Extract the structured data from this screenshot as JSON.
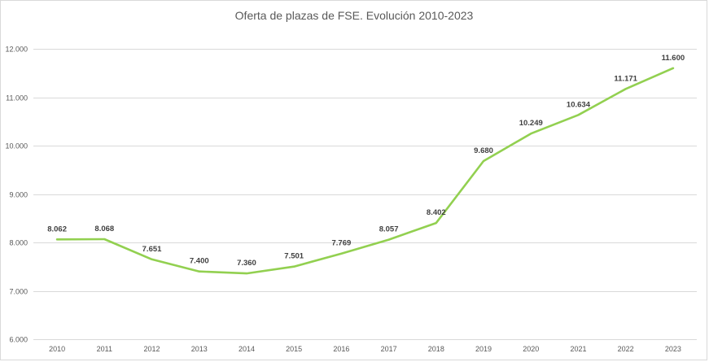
{
  "chart_data": {
    "type": "line",
    "title": "Oferta de plazas de FSE. Evolución 2010-2023",
    "x": [
      "2010",
      "2011",
      "2012",
      "2013",
      "2014",
      "2015",
      "2016",
      "2017",
      "2018",
      "2019",
      "2020",
      "2021",
      "2022",
      "2023"
    ],
    "series": [
      {
        "values": [
          8062,
          8068,
          7651,
          7400,
          7360,
          7501,
          7769,
          8057,
          8402,
          9680,
          10249,
          10634,
          11171,
          11600
        ],
        "labels": [
          "8.062",
          "8.068",
          "7.651",
          "7.400",
          "7.360",
          "7.501",
          "7.769",
          "8.057",
          "8.402",
          "9.680",
          "10.249",
          "10.634",
          "11.171",
          "11.600"
        ],
        "color": "#92d050"
      }
    ],
    "ylim": [
      6000,
      12000
    ],
    "yticks": [
      6000,
      7000,
      8000,
      9000,
      10000,
      11000,
      12000
    ],
    "ytick_labels": [
      "6.000",
      "7.000",
      "8.000",
      "9.000",
      "10.000",
      "11.000",
      "12.000"
    ],
    "grid": "horizontal",
    "legend": "none"
  }
}
